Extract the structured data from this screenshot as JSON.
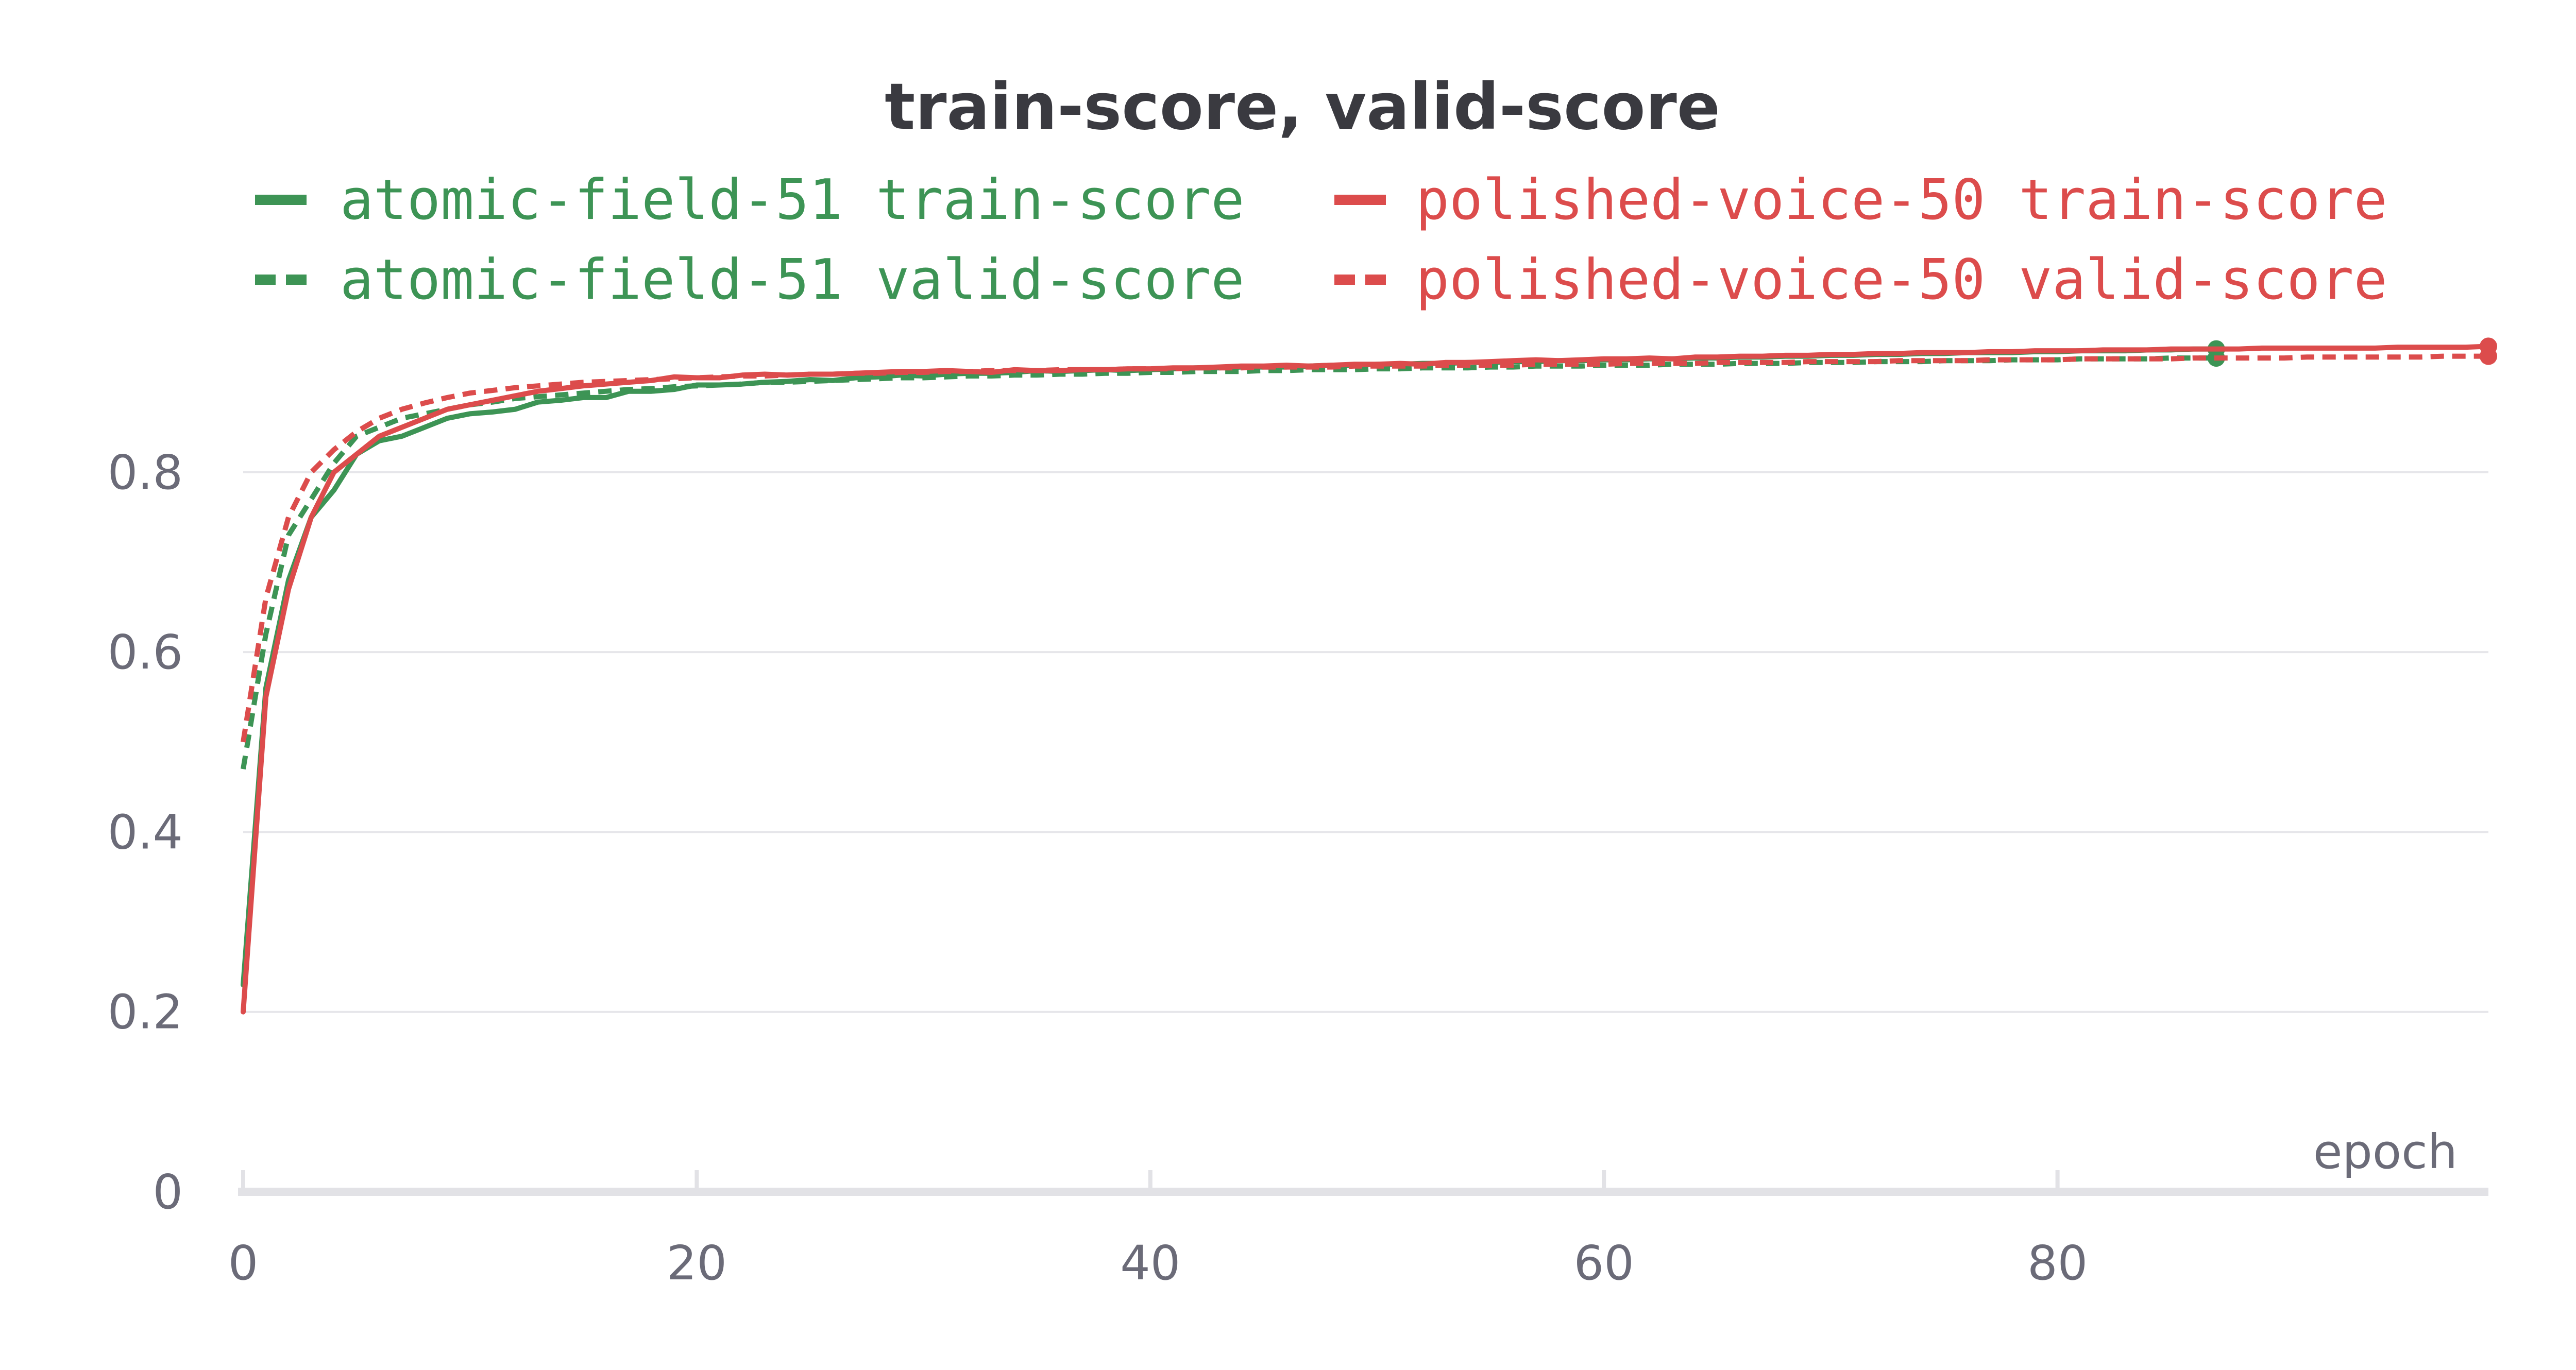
{
  "chart_data": {
    "type": "line",
    "title": "train-score, valid-score",
    "xlabel": "epoch",
    "ylabel": "",
    "xlim": [
      0,
      99
    ],
    "ylim": [
      0,
      0.97
    ],
    "x_ticks": [
      0,
      20,
      40,
      60,
      80
    ],
    "y_ticks": [
      0,
      0.2,
      0.4,
      0.6,
      0.8
    ],
    "grid": true,
    "legend_position": "top",
    "series": [
      {
        "name": "atomic-field-51 train-score",
        "color": "#3d9455",
        "dash": "solid",
        "end_marker": true,
        "x": [
          0,
          1,
          2,
          3,
          4,
          5,
          6,
          7,
          8,
          9,
          10,
          11,
          12,
          13,
          14,
          15,
          16,
          17,
          18,
          19,
          20,
          21,
          22,
          23,
          24,
          25,
          26,
          27,
          28,
          29,
          30,
          31,
          32,
          33,
          34,
          35,
          36,
          37,
          38,
          39,
          40,
          41,
          42,
          43,
          44,
          45,
          46,
          47,
          48,
          49,
          50,
          51,
          52,
          53,
          54,
          55,
          56,
          57,
          58,
          59,
          60,
          61,
          62,
          63,
          64,
          65,
          66,
          67,
          68,
          69,
          70,
          71,
          72,
          73,
          74,
          75,
          76,
          77,
          78,
          79,
          80,
          81,
          82,
          83,
          84,
          85,
          86,
          87
        ],
        "y": [
          0.23,
          0.56,
          0.68,
          0.75,
          0.78,
          0.82,
          0.835,
          0.84,
          0.85,
          0.86,
          0.865,
          0.867,
          0.87,
          0.878,
          0.88,
          0.883,
          0.883,
          0.89,
          0.89,
          0.892,
          0.897,
          0.897,
          0.898,
          0.9,
          0.901,
          0.903,
          0.902,
          0.905,
          0.906,
          0.908,
          0.907,
          0.909,
          0.91,
          0.91,
          0.911,
          0.913,
          0.912,
          0.913,
          0.914,
          0.913,
          0.914,
          0.915,
          0.916,
          0.916,
          0.917,
          0.917,
          0.917,
          0.918,
          0.919,
          0.919,
          0.92,
          0.92,
          0.921,
          0.921,
          0.922,
          0.922,
          0.923,
          0.923,
          0.924,
          0.924,
          0.925,
          0.925,
          0.926,
          0.926,
          0.927,
          0.927,
          0.928,
          0.928,
          0.929,
          0.929,
          0.93,
          0.93,
          0.931,
          0.931,
          0.932,
          0.932,
          0.933,
          0.933,
          0.933,
          0.934,
          0.934,
          0.935,
          0.935,
          0.935,
          0.936,
          0.936,
          0.937,
          0.937
        ]
      },
      {
        "name": "atomic-field-51 valid-score",
        "color": "#3d9455",
        "dash": "dashed",
        "end_marker": true,
        "x": [
          0,
          1,
          2,
          3,
          4,
          5,
          6,
          7,
          8,
          9,
          10,
          11,
          12,
          13,
          14,
          15,
          16,
          17,
          18,
          19,
          20,
          21,
          22,
          23,
          24,
          25,
          26,
          27,
          28,
          29,
          30,
          31,
          32,
          33,
          34,
          35,
          36,
          37,
          38,
          39,
          40,
          41,
          42,
          43,
          44,
          45,
          46,
          47,
          48,
          49,
          50,
          51,
          52,
          53,
          54,
          55,
          56,
          57,
          58,
          59,
          60,
          61,
          62,
          63,
          64,
          65,
          66,
          67,
          68,
          69,
          70,
          71,
          72,
          73,
          74,
          75,
          76,
          77,
          78,
          79,
          80,
          81,
          82,
          83,
          84,
          85,
          86,
          87
        ],
        "y": [
          0.47,
          0.62,
          0.73,
          0.77,
          0.81,
          0.84,
          0.85,
          0.86,
          0.865,
          0.87,
          0.875,
          0.878,
          0.882,
          0.884,
          0.886,
          0.888,
          0.89,
          0.892,
          0.893,
          0.895,
          0.896,
          0.897,
          0.898,
          0.9,
          0.9,
          0.901,
          0.902,
          0.903,
          0.904,
          0.905,
          0.905,
          0.906,
          0.907,
          0.907,
          0.908,
          0.908,
          0.909,
          0.909,
          0.91,
          0.91,
          0.911,
          0.911,
          0.912,
          0.912,
          0.912,
          0.913,
          0.913,
          0.914,
          0.914,
          0.914,
          0.915,
          0.915,
          0.916,
          0.916,
          0.916,
          0.917,
          0.917,
          0.918,
          0.918,
          0.918,
          0.919,
          0.919,
          0.919,
          0.92,
          0.92,
          0.92,
          0.921,
          0.921,
          0.921,
          0.922,
          0.922,
          0.922,
          0.923,
          0.923,
          0.923,
          0.924,
          0.924,
          0.924,
          0.925,
          0.925,
          0.925,
          0.926,
          0.926,
          0.926,
          0.926,
          0.927,
          0.927,
          0.927
        ]
      },
      {
        "name": "polished-voice-50 train-score",
        "color": "#dc4c4c",
        "dash": "solid",
        "end_marker": true,
        "x": [
          0,
          1,
          2,
          3,
          4,
          5,
          6,
          7,
          8,
          9,
          10,
          11,
          12,
          13,
          14,
          15,
          16,
          17,
          18,
          19,
          20,
          21,
          22,
          23,
          24,
          25,
          26,
          27,
          28,
          29,
          30,
          31,
          32,
          33,
          34,
          35,
          36,
          37,
          38,
          39,
          40,
          41,
          42,
          43,
          44,
          45,
          46,
          47,
          48,
          49,
          50,
          51,
          52,
          53,
          54,
          55,
          56,
          57,
          58,
          59,
          60,
          61,
          62,
          63,
          64,
          65,
          66,
          67,
          68,
          69,
          70,
          71,
          72,
          73,
          74,
          75,
          76,
          77,
          78,
          79,
          80,
          81,
          82,
          83,
          84,
          85,
          86,
          87,
          88,
          89,
          90,
          91,
          92,
          93,
          94,
          95,
          96,
          97,
          98,
          99
        ],
        "y": [
          0.2,
          0.55,
          0.67,
          0.75,
          0.8,
          0.82,
          0.84,
          0.85,
          0.86,
          0.87,
          0.875,
          0.88,
          0.885,
          0.89,
          0.893,
          0.896,
          0.898,
          0.9,
          0.902,
          0.906,
          0.905,
          0.905,
          0.908,
          0.909,
          0.908,
          0.909,
          0.909,
          0.91,
          0.911,
          0.912,
          0.912,
          0.913,
          0.912,
          0.911,
          0.914,
          0.913,
          0.913,
          0.914,
          0.914,
          0.915,
          0.915,
          0.916,
          0.916,
          0.917,
          0.918,
          0.918,
          0.919,
          0.918,
          0.919,
          0.92,
          0.92,
          0.921,
          0.92,
          0.922,
          0.922,
          0.923,
          0.924,
          0.925,
          0.924,
          0.925,
          0.926,
          0.926,
          0.927,
          0.926,
          0.928,
          0.928,
          0.929,
          0.929,
          0.93,
          0.93,
          0.931,
          0.931,
          0.932,
          0.932,
          0.933,
          0.933,
          0.933,
          0.934,
          0.934,
          0.935,
          0.935,
          0.935,
          0.936,
          0.936,
          0.936,
          0.937,
          0.937,
          0.937,
          0.937,
          0.938,
          0.938,
          0.938,
          0.938,
          0.938,
          0.938,
          0.939,
          0.939,
          0.939,
          0.939,
          0.94
        ]
      },
      {
        "name": "polished-voice-50 valid-score",
        "color": "#dc4c4c",
        "dash": "dashed",
        "end_marker": true,
        "x": [
          0,
          1,
          2,
          3,
          4,
          5,
          6,
          7,
          8,
          9,
          10,
          11,
          12,
          13,
          14,
          15,
          16,
          17,
          18,
          19,
          20,
          21,
          22,
          23,
          24,
          25,
          26,
          27,
          28,
          29,
          30,
          31,
          32,
          33,
          34,
          35,
          36,
          37,
          38,
          39,
          40,
          41,
          42,
          43,
          44,
          45,
          46,
          47,
          48,
          49,
          50,
          51,
          52,
          53,
          54,
          55,
          56,
          57,
          58,
          59,
          60,
          61,
          62,
          63,
          64,
          65,
          66,
          67,
          68,
          69,
          70,
          71,
          72,
          73,
          74,
          75,
          76,
          77,
          78,
          79,
          80,
          81,
          82,
          83,
          84,
          85,
          86,
          87,
          88,
          89,
          90,
          91,
          92,
          93,
          94,
          95,
          96,
          97,
          98,
          99
        ],
        "y": [
          0.5,
          0.66,
          0.75,
          0.8,
          0.825,
          0.845,
          0.86,
          0.87,
          0.877,
          0.883,
          0.888,
          0.891,
          0.894,
          0.896,
          0.898,
          0.9,
          0.901,
          0.902,
          0.903,
          0.904,
          0.905,
          0.906,
          0.907,
          0.907,
          0.908,
          0.909,
          0.909,
          0.91,
          0.91,
          0.911,
          0.911,
          0.912,
          0.912,
          0.913,
          0.913,
          0.913,
          0.914,
          0.914,
          0.914,
          0.915,
          0.915,
          0.915,
          0.916,
          0.916,
          0.916,
          0.917,
          0.917,
          0.917,
          0.917,
          0.918,
          0.918,
          0.918,
          0.918,
          0.919,
          0.919,
          0.919,
          0.919,
          0.92,
          0.92,
          0.92,
          0.92,
          0.921,
          0.921,
          0.921,
          0.921,
          0.922,
          0.922,
          0.922,
          0.922,
          0.923,
          0.923,
          0.923,
          0.923,
          0.924,
          0.924,
          0.924,
          0.924,
          0.925,
          0.925,
          0.925,
          0.925,
          0.926,
          0.926,
          0.926,
          0.926,
          0.926,
          0.927,
          0.927,
          0.927,
          0.927,
          0.927,
          0.928,
          0.928,
          0.928,
          0.928,
          0.928,
          0.928,
          0.929,
          0.929,
          0.929
        ]
      }
    ]
  }
}
